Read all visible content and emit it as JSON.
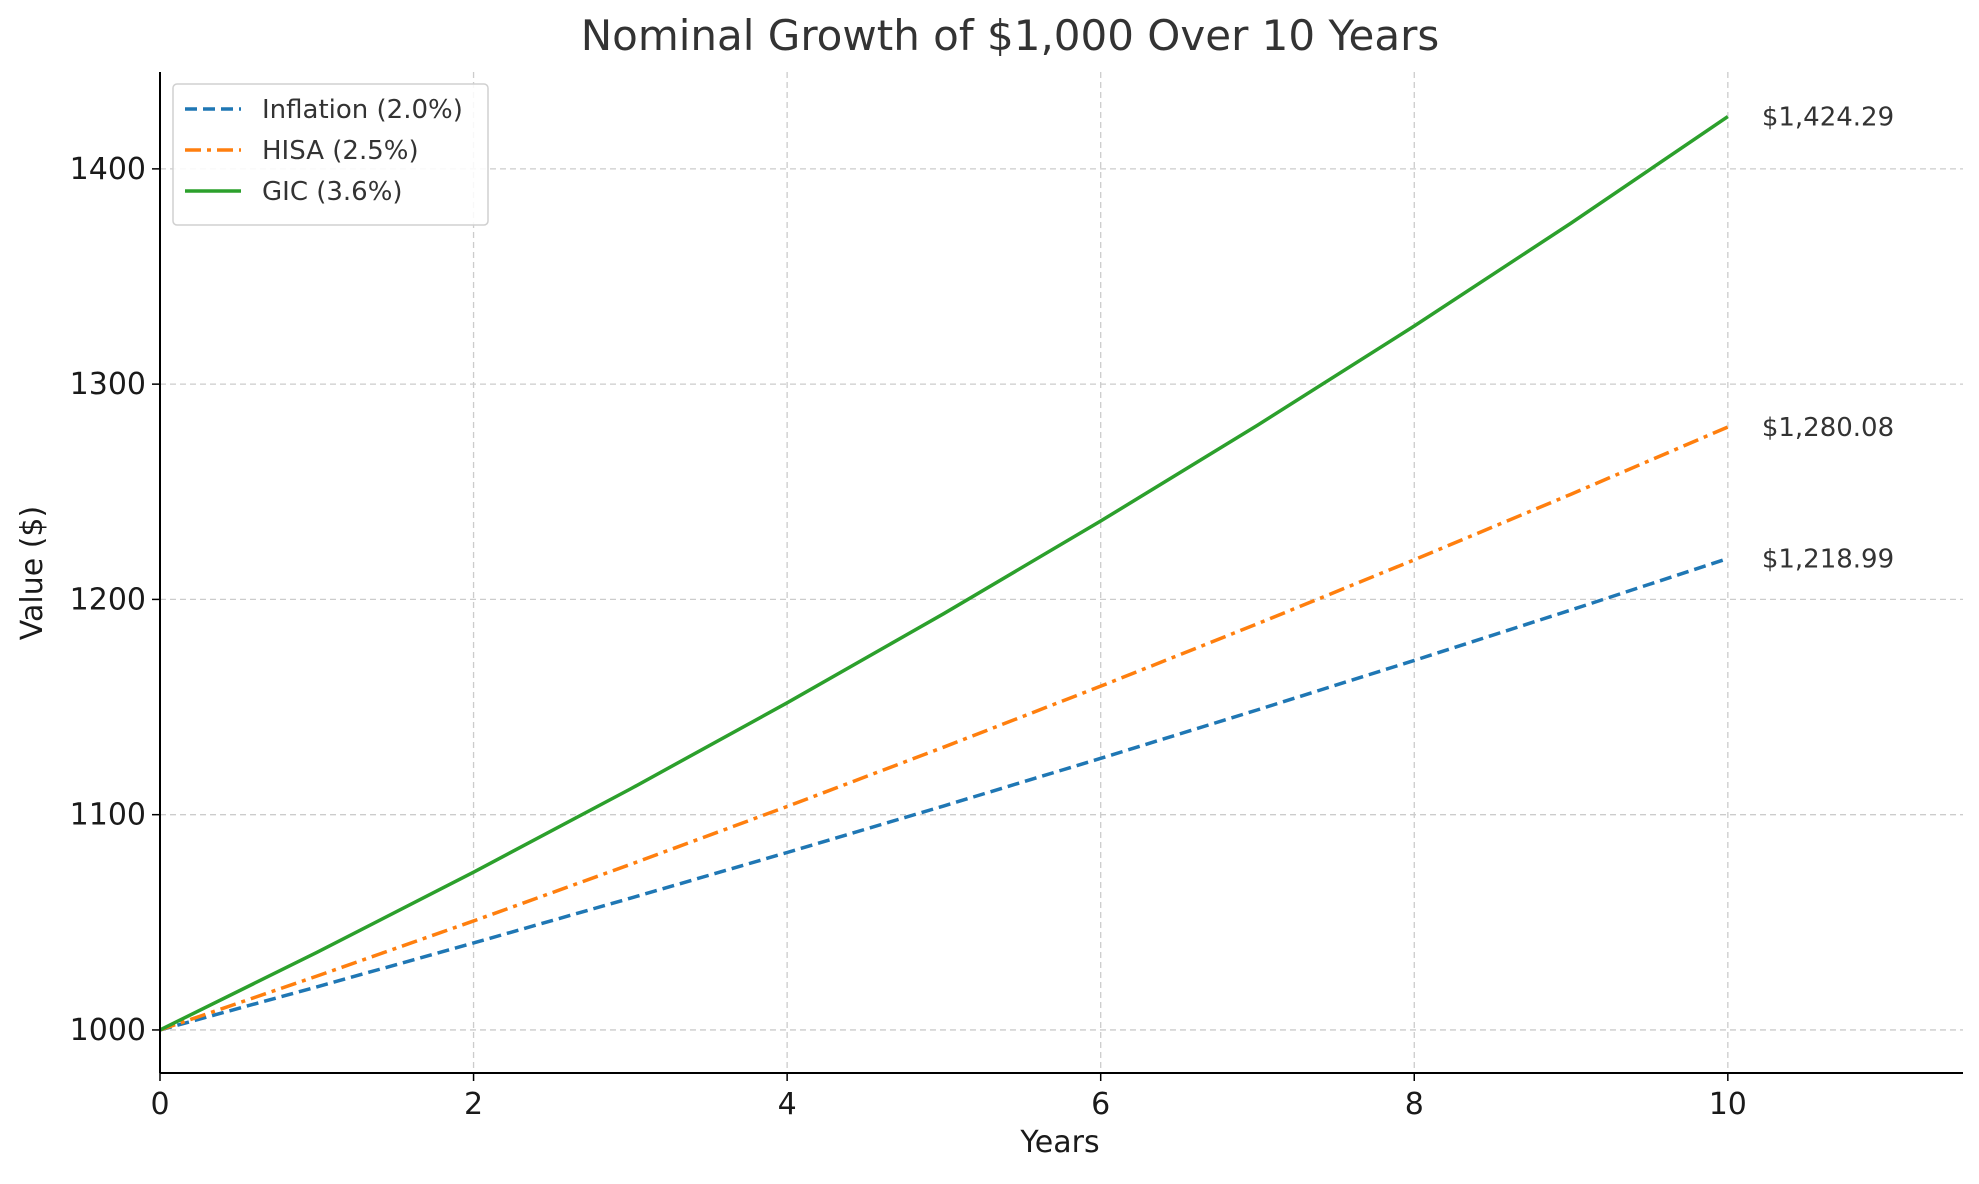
{
  "chart_data": {
    "type": "line",
    "title": "Nominal Growth of $1,000 Over 10 Years",
    "xlabel": "Years",
    "ylabel": "Value ($)",
    "xlim": [
      0,
      11.5
    ],
    "ylim": [
      980,
      1445
    ],
    "xticks": [
      0,
      2,
      4,
      6,
      8,
      10
    ],
    "yticks": [
      1000,
      1100,
      1200,
      1300,
      1400
    ],
    "grid": true,
    "legend_position": "top-left",
    "x": [
      0,
      1,
      2,
      3,
      4,
      5,
      6,
      7,
      8,
      9,
      10
    ],
    "series": [
      {
        "name": "Inflation (2.0%)",
        "color": "#1f77b4",
        "style": "dashed",
        "values": [
          1000,
          1020,
          1040.4,
          1061.21,
          1082.43,
          1104.08,
          1126.16,
          1148.69,
          1171.66,
          1195.09,
          1218.99
        ],
        "end_label": "$1,218.99"
      },
      {
        "name": "HISA (2.5%)",
        "color": "#ff7f0e",
        "style": "dashdot",
        "values": [
          1000,
          1025,
          1050.63,
          1076.89,
          1103.81,
          1131.41,
          1159.69,
          1188.69,
          1218.4,
          1248.86,
          1280.08
        ],
        "end_label": "$1,280.08"
      },
      {
        "name": "GIC (3.6%)",
        "color": "#2ca02c",
        "style": "solid",
        "values": [
          1000,
          1036,
          1073.3,
          1111.93,
          1151.96,
          1193.43,
          1236.4,
          1280.91,
          1327.02,
          1374.79,
          1424.29
        ],
        "end_label": "$1,424.29"
      }
    ]
  }
}
